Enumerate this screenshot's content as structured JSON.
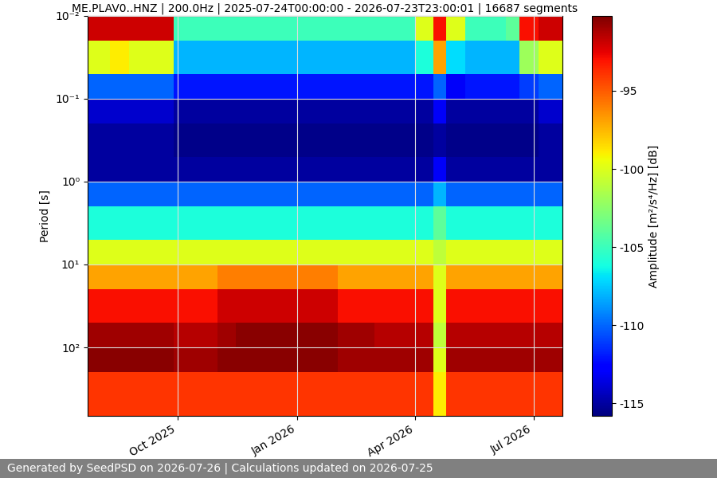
{
  "chart_data": {
    "type": "heatmap",
    "title": "ME.PLAV0..HNZ | 200.0Hz | 2025-07-24T00:00:00 - 2026-07-23T23:00:01 | 16687 segments",
    "y_label": "Period [s]",
    "footer": "Generated by SeedPSD on 2026-07-26 | Calculations updated on 2026-07-25",
    "log": "y",
    "grid": true,
    "color": "jet",
    "xlim": [
      "2025-07-24",
      "2026-07-23"
    ],
    "xticks": [
      {
        "value": "2025-10-01",
        "label": "Oct 2025"
      },
      {
        "value": "2026-01-01",
        "label": "Jan 2026"
      },
      {
        "value": "2026-04-01",
        "label": "Apr 2026"
      },
      {
        "value": "2026-07-01",
        "label": "Jul 2026"
      }
    ],
    "ylim": [
      670,
      0.01
    ],
    "yticks": [
      {
        "value": 0.01,
        "label": "10⁻²"
      },
      {
        "value": 0.1,
        "label": "10⁻¹"
      },
      {
        "value": 1,
        "label": "10⁰"
      },
      {
        "value": 10,
        "label": "10¹"
      },
      {
        "value": 100,
        "label": "10²"
      }
    ],
    "x_edges": [
      "2025-07-24",
      "2025-08-10",
      "2025-08-25",
      "2025-09-10",
      "2025-09-28",
      "2025-10-15",
      "2025-11-01",
      "2025-11-15",
      "2025-12-01",
      "2025-12-15",
      "2026-01-01",
      "2026-01-15",
      "2026-02-01",
      "2026-02-15",
      "2026-03-01",
      "2026-03-15",
      "2026-04-01",
      "2026-04-15",
      "2026-04-25",
      "2026-05-10",
      "2026-05-25",
      "2026-06-10",
      "2026-06-20",
      "2026-07-05",
      "2026-07-23"
    ],
    "period_edges": [
      0.01,
      0.02,
      0.05,
      0.1,
      0.2,
      0.5,
      1,
      2,
      5,
      10,
      20,
      50,
      100,
      200,
      670
    ],
    "cells": [
      [
        -92,
        -100,
        -110,
        -114,
        -115,
        -115,
        -110,
        -106,
        -100,
        -97,
        -93,
        -91,
        -90.5,
        -94
      ],
      [
        -92,
        -99,
        -110,
        -114,
        -115,
        -115,
        -110,
        -106,
        -100,
        -97,
        -93,
        -91,
        -90.5,
        -94
      ],
      [
        -92,
        -100,
        -110,
        -114,
        -115,
        -115,
        -110,
        -106,
        -100,
        -97,
        -93,
        -91,
        -90.5,
        -94
      ],
      [
        -92,
        -100,
        -110,
        -114,
        -115,
        -115,
        -110,
        -106,
        -100,
        -97,
        -93,
        -91,
        -90.5,
        -94
      ],
      [
        -105,
        -108,
        -112,
        -115,
        -115.5,
        -115,
        -110,
        -106,
        -100,
        -97,
        -93,
        -91.5,
        -91,
        -94
      ],
      [
        -105,
        -108,
        -112,
        -115,
        -115.5,
        -115,
        -110,
        -106,
        -100,
        -97,
        -93,
        -91.5,
        -91,
        -94
      ],
      [
        -105,
        -108,
        -112,
        -115,
        -115.5,
        -115,
        -110,
        -106,
        -100,
        -96,
        -92,
        -91,
        -90.5,
        -94
      ],
      [
        -105,
        -108,
        -112,
        -115,
        -115.5,
        -115,
        -110,
        -106,
        -100,
        -96,
        -92,
        -90.5,
        -90.5,
        -94
      ],
      [
        -105,
        -108,
        -112,
        -115,
        -115.5,
        -115,
        -110,
        -106,
        -100,
        -96,
        -92,
        -90.5,
        -90.5,
        -94
      ],
      [
        -105,
        -108,
        -112,
        -115,
        -115.5,
        -115,
        -110,
        -106,
        -100,
        -96,
        -92,
        -90.5,
        -90.5,
        -94
      ],
      [
        -105,
        -108,
        -112,
        -115,
        -115.5,
        -115,
        -110,
        -106,
        -100,
        -96,
        -92,
        -90.5,
        -90.5,
        -94
      ],
      [
        -105,
        -108,
        -112,
        -115,
        -115.5,
        -115,
        -110,
        -106,
        -100,
        -96,
        -92,
        -90.5,
        -90.5,
        -94
      ],
      [
        -105,
        -108,
        -112,
        -115,
        -115.5,
        -115,
        -110,
        -106,
        -100,
        -97,
        -93,
        -91,
        -91,
        -94
      ],
      [
        -105,
        -108,
        -112,
        -115,
        -115.5,
        -115,
        -110,
        -106,
        -100,
        -97,
        -93,
        -91,
        -91,
        -94
      ],
      [
        -105,
        -108,
        -112,
        -115,
        -115.5,
        -115,
        -110,
        -106,
        -100,
        -97,
        -93,
        -91.5,
        -91,
        -94
      ],
      [
        -105,
        -108,
        -112,
        -115,
        -115.5,
        -115,
        -110,
        -106,
        -100,
        -97,
        -93,
        -91.5,
        -91,
        -94
      ],
      [
        -100,
        -106,
        -112,
        -115,
        -115.5,
        -115,
        -110,
        -106,
        -100,
        -97,
        -93,
        -91.5,
        -91,
        -94
      ],
      [
        -93,
        -97,
        -110,
        -113,
        -115,
        -113,
        -108,
        -104,
        -101,
        -100,
        -100,
        -101,
        -100,
        -99
      ],
      [
        -100,
        -107,
        -113,
        -115,
        -115.5,
        -115,
        -110,
        -106,
        -100,
        -97,
        -93,
        -91.5,
        -91,
        -94
      ],
      [
        -105,
        -108,
        -112,
        -115,
        -115.5,
        -115,
        -110,
        -106,
        -100,
        -97,
        -93,
        -91.5,
        -91,
        -94
      ],
      [
        -105,
        -108,
        -112,
        -115,
        -115.5,
        -115,
        -110,
        -106,
        -100,
        -97,
        -93,
        -91.5,
        -91,
        -94
      ],
      [
        -104,
        -108,
        -112,
        -115,
        -115.5,
        -115,
        -110,
        -106,
        -100,
        -97,
        -93,
        -91.5,
        -91,
        -94
      ],
      [
        -93,
        -102,
        -111,
        -115,
        -115.5,
        -115,
        -110,
        -106,
        -100,
        -97,
        -93,
        -91.5,
        -91,
        -94
      ],
      [
        -92,
        -100,
        -110,
        -114,
        -115,
        -115,
        -110,
        -106,
        -100,
        -97,
        -93,
        -91.5,
        -91,
        -94
      ]
    ],
    "colorbar": {
      "label": "Amplitude [m²/s⁴/Hz] [dB]",
      "range": [
        -115.8,
        -90.2
      ],
      "ticks": [
        -95,
        -100,
        -105,
        -110,
        -115
      ]
    }
  }
}
